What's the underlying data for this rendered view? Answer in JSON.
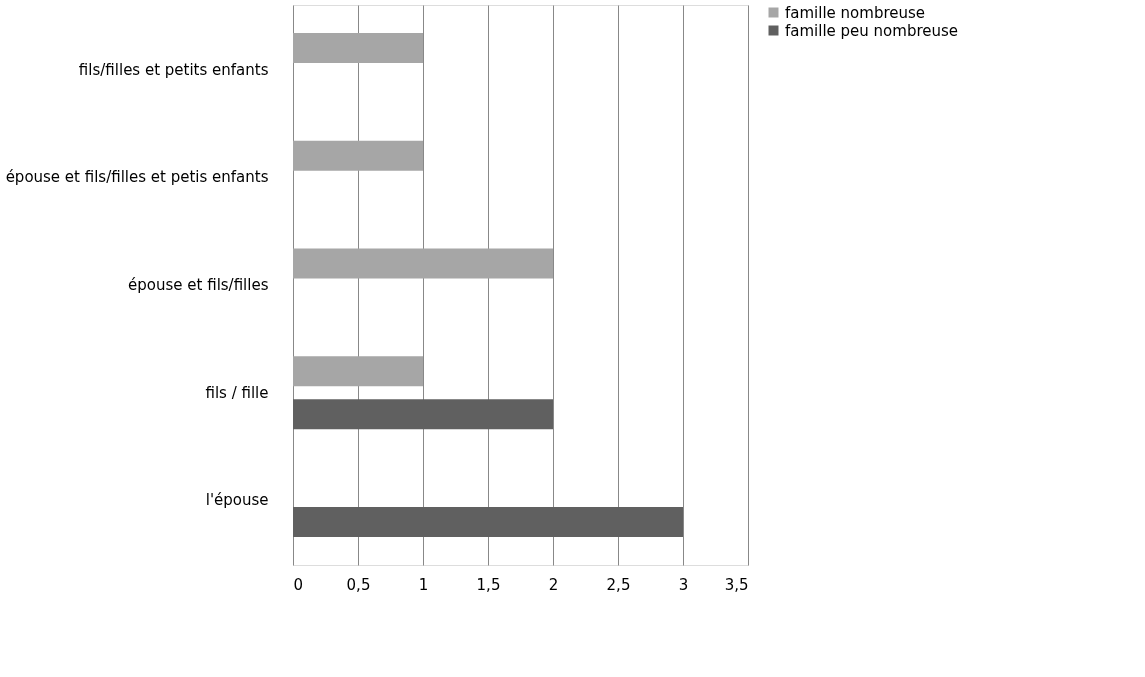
{
  "chart_data": {
    "type": "bar",
    "orientation": "horizontal",
    "categories": [
      "fils/filles et petits enfants",
      "épouse et fils/filles et petis enfants",
      "épouse et fils/filles",
      "fils / fille",
      "l'épouse"
    ],
    "series": [
      {
        "name": "famille nombreuse",
        "color": "#a6a6a6",
        "values": [
          1,
          1,
          2,
          1,
          null
        ]
      },
      {
        "name": "famille peu nombreuse",
        "color": "#606060",
        "values": [
          null,
          null,
          null,
          2,
          3
        ]
      }
    ],
    "xlim": [
      0,
      3.5
    ],
    "xticks": [
      0,
      {
        "value": 0.5,
        "label": "0,5"
      },
      1,
      {
        "value": 1.5,
        "label": "1,5"
      },
      2,
      {
        "value": 2.5,
        "label": "2,5"
      },
      3,
      {
        "value": 3.5,
        "label": "3,5"
      }
    ],
    "grid": "x",
    "legend": "right"
  }
}
